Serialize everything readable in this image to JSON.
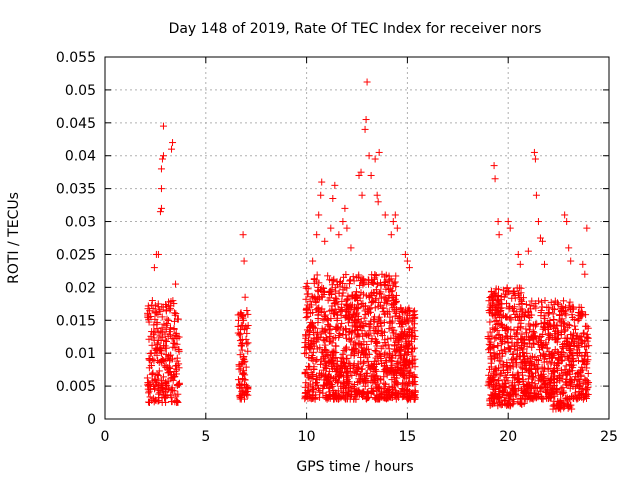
{
  "chart_data": {
    "type": "scatter",
    "title": "Day 148 of 2019, Rate Of TEC Index for receiver nors",
    "xlabel": "GPS time / hours",
    "ylabel": "ROTI / TECUs",
    "xlim": [
      0,
      25
    ],
    "ylim": [
      0,
      0.055
    ],
    "grid": true,
    "marker": "+",
    "color": "#ff0000",
    "x_ticks": [
      0,
      5,
      10,
      15,
      20,
      25
    ],
    "x_tick_labels": [
      "0",
      "5",
      "10",
      "15",
      "20",
      "25"
    ],
    "y_ticks": [
      0,
      0.005,
      0.01,
      0.015,
      0.02,
      0.025,
      0.03,
      0.035,
      0.04,
      0.045,
      0.05,
      0.055
    ],
    "y_tick_labels": [
      "0",
      "0.005",
      "0.01",
      "0.015",
      "0.02",
      "0.025",
      "0.03",
      "0.035",
      "0.04",
      "0.045",
      "0.05",
      "0.055"
    ],
    "clusters": [
      {
        "x_range": [
          2.1,
          3.7
        ],
        "y_range": [
          0.0025,
          0.018
        ],
        "count": 260
      },
      {
        "x_range": [
          6.6,
          7.1
        ],
        "y_range": [
          0.003,
          0.017
        ],
        "count": 90
      },
      {
        "x_range": [
          9.9,
          12.2
        ],
        "y_range": [
          0.003,
          0.022
        ],
        "count": 520
      },
      {
        "x_range": [
          12.2,
          14.5
        ],
        "y_range": [
          0.003,
          0.022
        ],
        "count": 520
      },
      {
        "x_range": [
          14.5,
          15.4
        ],
        "y_range": [
          0.003,
          0.017
        ],
        "count": 220
      },
      {
        "x_range": [
          19.0,
          20.8
        ],
        "y_range": [
          0.002,
          0.02
        ],
        "count": 420
      },
      {
        "x_range": [
          20.8,
          22.2
        ],
        "y_range": [
          0.003,
          0.018
        ],
        "count": 280
      },
      {
        "x_range": [
          22.2,
          23.2
        ],
        "y_range": [
          0.0015,
          0.018
        ],
        "count": 220
      },
      {
        "x_range": [
          23.2,
          24.0
        ],
        "y_range": [
          0.003,
          0.017
        ],
        "count": 140
      }
    ],
    "high_points": [
      [
        2.35,
        0.018
      ],
      [
        2.45,
        0.023
      ],
      [
        2.55,
        0.025
      ],
      [
        2.65,
        0.025
      ],
      [
        2.75,
        0.0315
      ],
      [
        2.8,
        0.032
      ],
      [
        2.8,
        0.035
      ],
      [
        2.8,
        0.038
      ],
      [
        2.85,
        0.0395
      ],
      [
        2.9,
        0.04
      ],
      [
        2.9,
        0.0445
      ],
      [
        3.3,
        0.041
      ],
      [
        3.35,
        0.042
      ],
      [
        3.5,
        0.0205
      ],
      [
        6.85,
        0.028
      ],
      [
        6.9,
        0.024
      ],
      [
        6.95,
        0.0185
      ],
      [
        10.3,
        0.024
      ],
      [
        10.5,
        0.028
      ],
      [
        10.6,
        0.031
      ],
      [
        10.7,
        0.034
      ],
      [
        10.75,
        0.036
      ],
      [
        10.9,
        0.027
      ],
      [
        11.2,
        0.029
      ],
      [
        11.3,
        0.0335
      ],
      [
        11.4,
        0.0355
      ],
      [
        11.6,
        0.028
      ],
      [
        11.8,
        0.03
      ],
      [
        11.9,
        0.032
      ],
      [
        12.0,
        0.029
      ],
      [
        12.2,
        0.026
      ],
      [
        12.6,
        0.037
      ],
      [
        12.7,
        0.0375
      ],
      [
        12.75,
        0.034
      ],
      [
        12.9,
        0.044
      ],
      [
        12.95,
        0.0455
      ],
      [
        13.0,
        0.0512
      ],
      [
        13.1,
        0.04
      ],
      [
        13.2,
        0.037
      ],
      [
        13.4,
        0.0395
      ],
      [
        13.5,
        0.034
      ],
      [
        13.55,
        0.033
      ],
      [
        13.6,
        0.0405
      ],
      [
        13.9,
        0.031
      ],
      [
        14.2,
        0.028
      ],
      [
        14.3,
        0.03
      ],
      [
        14.4,
        0.031
      ],
      [
        14.5,
        0.029
      ],
      [
        14.9,
        0.025
      ],
      [
        15.0,
        0.024
      ],
      [
        15.1,
        0.023
      ],
      [
        19.3,
        0.0385
      ],
      [
        19.35,
        0.0365
      ],
      [
        19.5,
        0.03
      ],
      [
        19.55,
        0.028
      ],
      [
        20.0,
        0.03
      ],
      [
        20.1,
        0.029
      ],
      [
        20.5,
        0.025
      ],
      [
        20.6,
        0.0235
      ],
      [
        21.0,
        0.0255
      ],
      [
        21.3,
        0.0405
      ],
      [
        21.35,
        0.0395
      ],
      [
        21.4,
        0.034
      ],
      [
        21.5,
        0.03
      ],
      [
        21.6,
        0.0275
      ],
      [
        21.7,
        0.027
      ],
      [
        21.8,
        0.0235
      ],
      [
        22.8,
        0.031
      ],
      [
        22.9,
        0.03
      ],
      [
        23.0,
        0.026
      ],
      [
        23.1,
        0.024
      ],
      [
        23.7,
        0.0235
      ],
      [
        23.9,
        0.029
      ],
      [
        23.8,
        0.022
      ]
    ]
  }
}
